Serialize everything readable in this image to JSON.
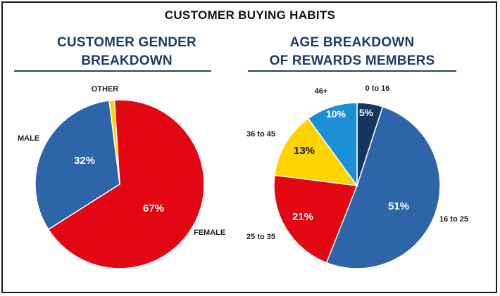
{
  "title": "CUSTOMER BUYING HABITS",
  "chart_data": [
    {
      "type": "pie",
      "title_lines": [
        "CUSTOMER GENDER",
        "BREAKDOWN"
      ],
      "slices": [
        {
          "label": "FEMALE",
          "value": 67,
          "value_label": "67%",
          "color": "#e30613",
          "text": "light"
        },
        {
          "label": "MALE",
          "value": 32,
          "value_label": "32%",
          "color": "#2e64a8",
          "text": "light"
        },
        {
          "label": "OTHER",
          "value": 1,
          "value_label": "",
          "color": "#ffd400",
          "text": "light"
        }
      ]
    },
    {
      "type": "pie",
      "title_lines": [
        "AGE BREAKDOWN",
        "OF REWARDS MEMBERS"
      ],
      "slices": [
        {
          "label": "0 to 16",
          "value": 5,
          "value_label": "5%",
          "color": "#16355f",
          "text": "light"
        },
        {
          "label": "16 to 25",
          "value": 51,
          "value_label": "51%",
          "color": "#2e64a8",
          "text": "light"
        },
        {
          "label": "25 to 35",
          "value": 21,
          "value_label": "21%",
          "color": "#e30613",
          "text": "light"
        },
        {
          "label": "36 to 45",
          "value": 13,
          "value_label": "13%",
          "color": "#ffd400",
          "text": "dark"
        },
        {
          "label": "46+",
          "value": 10,
          "value_label": "10%",
          "color": "#1a8fd6",
          "text": "light"
        }
      ]
    }
  ]
}
